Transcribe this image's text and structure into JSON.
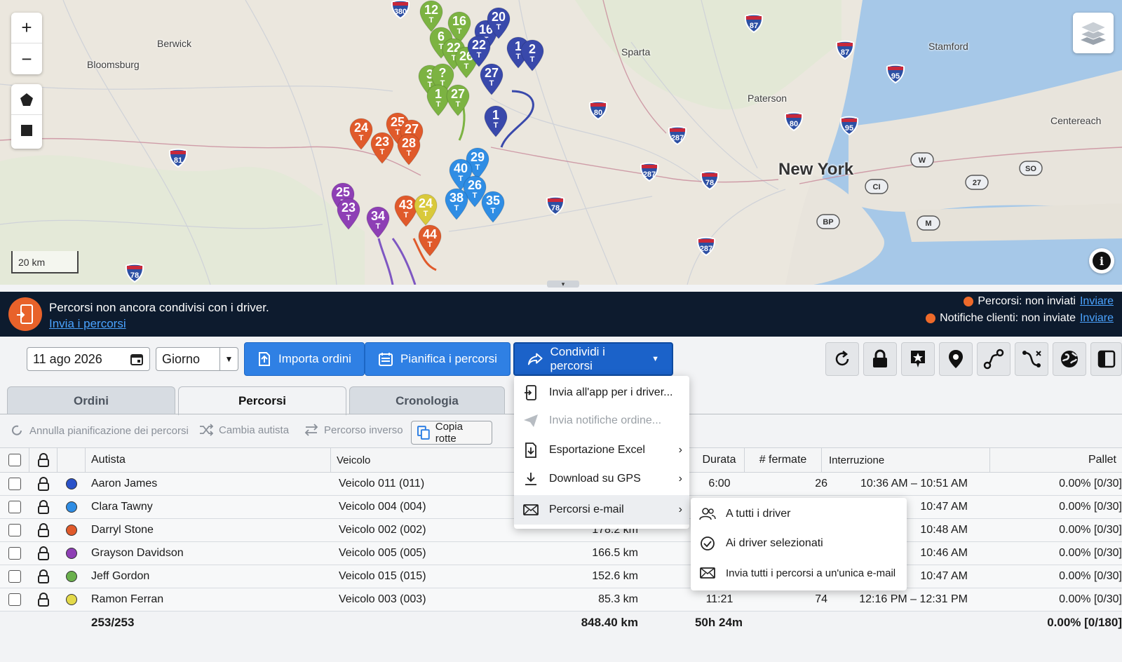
{
  "map": {
    "places": [
      {
        "id": "berwick",
        "label": "Berwick"
      },
      {
        "id": "bloomsburg",
        "label": "Bloomsburg"
      },
      {
        "id": "sparta",
        "label": "Sparta"
      },
      {
        "id": "paterson",
        "label": "Paterson"
      },
      {
        "id": "stamford",
        "label": "Stamford"
      },
      {
        "id": "centereach",
        "label": "Centereach"
      },
      {
        "id": "newyork",
        "label": "New York"
      }
    ],
    "highway_shields": [
      "380",
      "87",
      "87",
      "95",
      "80",
      "80",
      "95",
      "81",
      "287",
      "287",
      "78",
      "78",
      "287",
      "78",
      "W",
      "SO",
      "CI",
      "27",
      "BP",
      "M"
    ],
    "pins": [
      {
        "n": "12",
        "c": "#7cb342"
      },
      {
        "n": "16",
        "c": "#7cb342"
      },
      {
        "n": "16",
        "c": "#3949ab"
      },
      {
        "n": "20",
        "c": "#3949ab"
      },
      {
        "n": "6",
        "c": "#7cb342"
      },
      {
        "n": "22",
        "c": "#7cb342"
      },
      {
        "n": "26",
        "c": "#7cb342"
      },
      {
        "n": "22",
        "c": "#3949ab"
      },
      {
        "n": "1",
        "c": "#3949ab"
      },
      {
        "n": "2",
        "c": "#3949ab"
      },
      {
        "n": "3",
        "c": "#7cb342"
      },
      {
        "n": "?",
        "c": "#7cb342"
      },
      {
        "n": "27",
        "c": "#3949ab"
      },
      {
        "n": "1",
        "c": "#7cb342"
      },
      {
        "n": "27",
        "c": "#7cb342"
      },
      {
        "n": "1",
        "c": "#3949ab"
      },
      {
        "n": "24",
        "c": "#e05a2b"
      },
      {
        "n": "25",
        "c": "#e05a2b"
      },
      {
        "n": "27",
        "c": "#e05a2b"
      },
      {
        "n": "23",
        "c": "#e05a2b"
      },
      {
        "n": "28",
        "c": "#e05a2b"
      },
      {
        "n": "29",
        "c": "#2f8de4"
      },
      {
        "n": "40",
        "c": "#2f8de4"
      },
      {
        "n": "26",
        "c": "#2f8de4"
      },
      {
        "n": "25",
        "c": "#8e3fb5"
      },
      {
        "n": "23",
        "c": "#8e3fb5"
      },
      {
        "n": "34",
        "c": "#8e3fb5"
      },
      {
        "n": "43",
        "c": "#e05a2b"
      },
      {
        "n": "24",
        "c": "#d9c93b"
      },
      {
        "n": "38",
        "c": "#2f8de4"
      },
      {
        "n": "35",
        "c": "#2f8de4"
      },
      {
        "n": "44",
        "c": "#e05a2b"
      }
    ],
    "pin_sub": "T",
    "scale_label": "20 km"
  },
  "banner": {
    "message": "Percorsi non ancora condivisi con i driver.",
    "link": "Invia i percorsi",
    "status1_label": "Percorsi: non inviati",
    "status1_link": "Inviare",
    "status2_label": "Notifiche clienti: non inviate",
    "status2_link": "Inviare"
  },
  "toolbar": {
    "date": "11 ago 2026",
    "period": "Giorno",
    "import_label": "Importa ordini",
    "plan_label": "Pianifica i percorsi",
    "share_label": "Condividi i percorsi"
  },
  "tabs": {
    "orders": "Ordini",
    "routes": "Percorsi",
    "history": "Cronologia"
  },
  "actions": {
    "cancel_planning": "Annulla pianificazione dei percorsi",
    "change_driver": "Cambia autista",
    "reverse_route": "Percorso inverso",
    "copy_routes": "Copia rotte"
  },
  "table": {
    "headers": {
      "driver": "Autista",
      "vehicle": "Veicolo",
      "duration": "Durata",
      "stops": "# fermate",
      "break": "Interruzione",
      "pallet": "Pallet"
    },
    "rows": [
      {
        "color": "#2a52c9",
        "driver": "Aaron James",
        "vehicle": "Veicolo 011 (011)",
        "distance": "",
        "duration": "6:00",
        "stops": "26",
        "break": "10:36 AM – 10:51 AM",
        "pallet": "0.00% [0/30]"
      },
      {
        "color": "#2f8de4",
        "driver": "Clara Tawny",
        "vehicle": "Veicolo 004 (004)",
        "distance": "",
        "duration": "",
        "stops": "",
        "break": "10:47 AM",
        "pallet": "0.00% [0/30]"
      },
      {
        "color": "#e05a2b",
        "driver": "Darryl Stone",
        "vehicle": "Veicolo 002 (002)",
        "distance": "178.2 km",
        "duration": "",
        "stops": "",
        "break": "10:48 AM",
        "pallet": "0.00% [0/30]"
      },
      {
        "color": "#8e3fb5",
        "driver": "Grayson Davidson",
        "vehicle": "Veicolo 005 (005)",
        "distance": "166.5 km",
        "duration": "",
        "stops": "",
        "break": "10:46 AM",
        "pallet": "0.00% [0/30]"
      },
      {
        "color": "#6ab04c",
        "driver": "Jeff Gordon",
        "vehicle": "Veicolo 015 (015)",
        "distance": "152.6 km",
        "duration": "",
        "stops": "",
        "break": "10:47 AM",
        "pallet": "0.00% [0/30]"
      },
      {
        "color": "#e3d94a",
        "driver": "Ramon Ferran",
        "vehicle": "Veicolo 003 (003)",
        "distance": "85.3 km",
        "duration": "11:21",
        "stops": "74",
        "break": "12:16 PM – 12:31 PM",
        "pallet": "0.00% [0/30]"
      }
    ],
    "totals": {
      "count": "253/253",
      "distance": "848.40 km",
      "duration": "50h 24m",
      "pallet": "0.00% [0/180]"
    }
  },
  "share_menu": {
    "items": [
      {
        "label": "Invia all'app per i driver...",
        "disabled": false
      },
      {
        "label": "Invia notifiche ordine...",
        "disabled": true
      },
      {
        "label": "Esportazione Excel",
        "disabled": false
      },
      {
        "label": "Download su GPS",
        "disabled": false
      },
      {
        "label": "Percorsi e-mail",
        "disabled": false
      }
    ]
  },
  "email_submenu": {
    "items": [
      {
        "label": "A tutti i driver"
      },
      {
        "label": "Ai driver selezionati"
      },
      {
        "label": "Invia tutti i percorsi a un'unica e-mail"
      }
    ]
  },
  "colors": {
    "primary": "#2f80e4",
    "banner_bg": "#0d1b2e",
    "status_dot": "#ee6a2a",
    "water": "#a6c8e8"
  }
}
